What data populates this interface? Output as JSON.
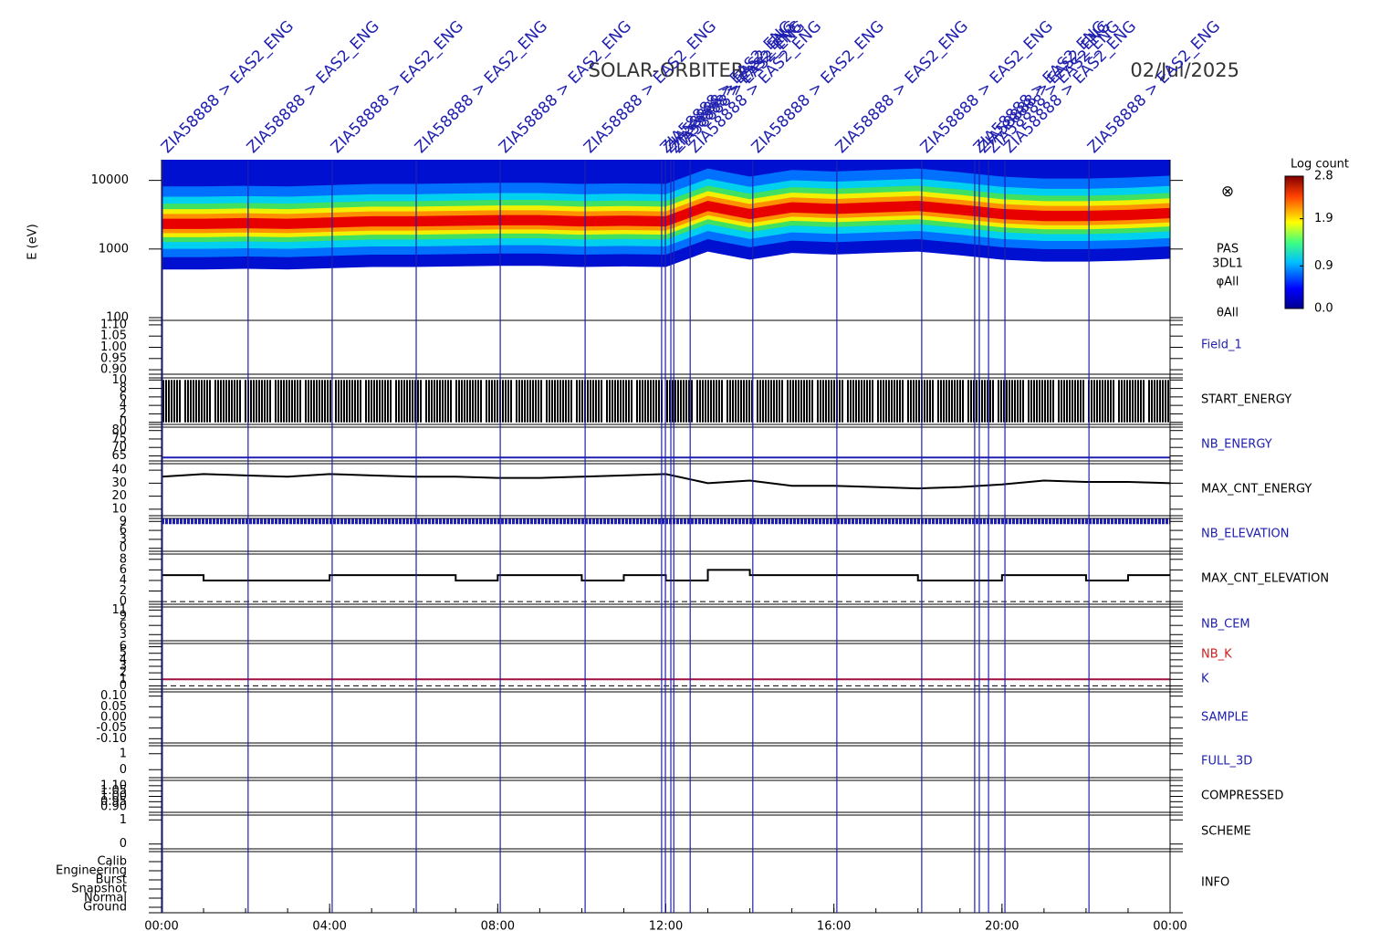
{
  "chart_data": {
    "type": "timeseries",
    "title": "SOLAR-ORBITER",
    "date": "02/Jul/2025",
    "xlim": [
      0,
      24
    ],
    "xticks": [
      {
        "value": 0,
        "label": "00:00"
      },
      {
        "value": 4,
        "label": "04:00"
      },
      {
        "value": 8,
        "label": "08:00"
      },
      {
        "value": 12,
        "label": "12:00"
      },
      {
        "value": 16,
        "label": "16:00"
      },
      {
        "value": 20,
        "label": "20:00"
      },
      {
        "value": 24,
        "label": "00:00"
      }
    ],
    "hours": [
      0,
      1,
      2,
      3,
      4,
      5,
      6,
      7,
      8,
      9,
      10,
      11,
      12,
      13,
      14,
      15,
      16,
      17,
      18,
      19,
      20,
      21,
      22,
      23,
      24
    ],
    "events": {
      "color": "#2020b0",
      "x": [
        0.02,
        2.06,
        4.06,
        6.06,
        8.06,
        10.08,
        11.9,
        11.99,
        12.12,
        12.19,
        12.58,
        14.07,
        16.07,
        18.09,
        19.35,
        19.46,
        19.68,
        20.07,
        22.07
      ],
      "labels": [
        "ZIA58888 > EAS2_ENG",
        "ZIA58888 > EAS2_ENG",
        "ZIA58888 > EAS2_ENG",
        "ZIA58888 > EAS2_ENG",
        "ZIA58888 > EAS2_ENG",
        "ZIA58888 > EAS2_ENG",
        "ZIA58888 > EAS2_ENG",
        "ZIA58888 > EAS2_ENG",
        "ZIA58888 > EAS2_ENG",
        "ZIA58888 > EAS2_ENG",
        "ZIA58888 > EAS2_ENG",
        "ZIA58888 > EAS2_ENG",
        "ZIA58888 > EAS2_ENG",
        "ZIA58888 > EAS2_ENG",
        "ZIA58888 > EAS2_ENG",
        "ZIA58888 > EAS2_ENG",
        "ZIA58888 > EAS2_ENG",
        "ZIA58888 > EAS2_ENG",
        "ZIA58888 > EAS2_ENG"
      ]
    },
    "spectrogram": {
      "y_label": "E (eV)",
      "log_y": true,
      "ylim": [
        100,
        20000
      ],
      "yticks": [
        10000,
        1000,
        100
      ],
      "peak_energy": [
        2300,
        2300,
        2350,
        2300,
        2400,
        2500,
        2500,
        2550,
        2600,
        2600,
        2500,
        2550,
        2500,
        4200,
        3200,
        4000,
        3800,
        4000,
        4200,
        3700,
        3200,
        3000,
        3000,
        3100,
        3300
      ],
      "symbol": "⊗",
      "labels": [
        "PAS",
        "3DL1",
        "φAll",
        "θAll"
      ],
      "colorbar": {
        "title": "Log count",
        "clim": [
          0,
          2.8
        ],
        "ticks": [
          {
            "value": 0,
            "label": "0.0"
          },
          0.9,
          1.9,
          2.8
        ]
      }
    },
    "panels": [
      {
        "label": "Field_1",
        "color": "#2020b0",
        "ylim": [
          0.88,
          1.12
        ],
        "yticks": [
          {
            "value": 1.1,
            "label": "1.10"
          },
          1.05,
          {
            "value": 1,
            "label": "1.00"
          },
          0.95,
          {
            "value": 0.9,
            "label": "0.90"
          }
        ]
      },
      {
        "label": "START_ENERGY",
        "color": "#000000",
        "ylim": [
          -0.5,
          10.5
        ],
        "yticks": [
          10,
          8,
          6,
          4,
          2,
          0
        ],
        "sweep": [
          0,
          10
        ]
      },
      {
        "label": "NB_ENERGY",
        "color": "#2020b0",
        "ylim": [
          62,
          82
        ],
        "yticks": [
          80,
          75,
          70,
          65
        ],
        "series": [
          {
            "color": "#2020b0",
            "x": [
              0,
              24
            ],
            "values": [
              64,
              64
            ]
          }
        ]
      },
      {
        "label": "MAX_CNT_ENERGY",
        "color": "#000000",
        "ylim": [
          5,
          45
        ],
        "yticks": [
          40,
          30,
          20,
          10
        ],
        "series": [
          {
            "color": "#000000",
            "values": [
              35,
              37,
              36,
              35,
              37,
              36,
              35,
              35,
              34,
              34,
              35,
              36,
              37,
              30,
              32,
              28,
              28,
              27,
              26,
              27,
              29,
              32,
              31,
              31,
              30
            ]
          }
        ]
      },
      {
        "label": "NB_ELEVATION",
        "color": "#2020b0",
        "ylim": [
          -1,
          10
        ],
        "yticks": [
          9,
          6,
          3,
          0
        ],
        "series": [
          {
            "color": "#2020b0",
            "x": [
              0,
              24
            ],
            "values": [
              9,
              9
            ],
            "thick": true
          }
        ]
      },
      {
        "label": "MAX_CNT_ELEVATION",
        "color": "#000000",
        "ylim": [
          -0.5,
          9
        ],
        "yticks": [
          8,
          6,
          4,
          2,
          0
        ],
        "reference": 0,
        "series": [
          {
            "color": "#000000",
            "step": true,
            "values": [
              5,
              4,
              4,
              4,
              5,
              5,
              5,
              4,
              5,
              5,
              4,
              5,
              4,
              6,
              5,
              5,
              5,
              5,
              4,
              4,
              5,
              5,
              4,
              5,
              5
            ]
          }
        ]
      },
      {
        "label": "NB_CEM",
        "color": "#2020b0",
        "ylim": [
          1,
          12
        ],
        "yticks": [
          11,
          9,
          6,
          3
        ]
      },
      {
        "label": "NB_K",
        "color": "#d02020",
        "label2": "K",
        "color2": "#2020b0",
        "ylim": [
          -0.5,
          6.5
        ],
        "yticks": [
          6,
          5,
          4,
          3,
          2,
          1,
          0
        ],
        "reference": 0,
        "series": [
          {
            "color": "#a01040",
            "x": [
              0,
              24
            ],
            "values": [
              1,
              1
            ]
          }
        ]
      },
      {
        "label": "SAMPLE",
        "color": "#2020b0",
        "ylim": [
          -0.12,
          0.12
        ],
        "yticks": [
          {
            "value": 0.1,
            "label": "0.10"
          },
          0.05,
          {
            "value": 0,
            "label": "0.00"
          },
          -0.05,
          {
            "value": -0.1,
            "label": "-0.10"
          }
        ]
      },
      {
        "label": "FULL_3D",
        "color": "#2020b0",
        "ylim": [
          -0.5,
          1.5
        ],
        "yticks": [
          1,
          0
        ]
      },
      {
        "label": "COMPRESSED",
        "color": "#000000",
        "ylim": [
          0.85,
          1.15
        ],
        "yticks": [
          {
            "value": 1.1,
            "label": "1.10"
          },
          1.05,
          {
            "value": 1,
            "label": "1.00"
          },
          0.95,
          {
            "value": 0.9,
            "label": "0.90"
          }
        ]
      },
      {
        "label": "SCHEME",
        "color": "#000000",
        "ylim": [
          -0.2,
          1.2
        ],
        "yticks": [
          1,
          0
        ]
      },
      {
        "label": "INFO",
        "color": "#000000",
        "ylim": [
          -0.6,
          6.1
        ],
        "categories": [
          "Calib",
          "Engineering",
          "Burst",
          "Snapshot",
          "Normal",
          "Ground"
        ]
      }
    ]
  }
}
